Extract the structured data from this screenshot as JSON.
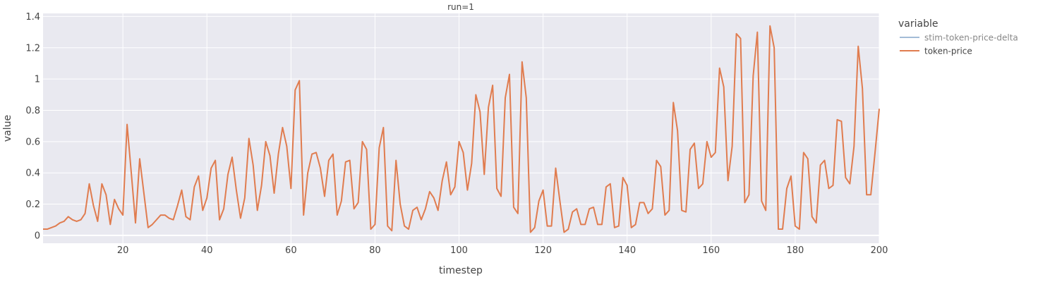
{
  "chart_data": {
    "type": "line",
    "title": "run=1",
    "xlabel": "timestep",
    "ylabel": "value",
    "xlim": [
      1,
      200
    ],
    "ylim": [
      -0.05,
      1.42
    ],
    "x_ticks": [
      20,
      40,
      60,
      80,
      100,
      120,
      140,
      160,
      180,
      200
    ],
    "y_ticks": [
      0,
      0.2,
      0.4,
      0.6,
      0.8,
      1,
      1.2,
      1.4
    ],
    "x_tick_labels": [
      "20",
      "40",
      "60",
      "80",
      "100",
      "120",
      "140",
      "160",
      "180",
      "200"
    ],
    "y_tick_labels": [
      "0",
      "0.2",
      "0.4",
      "0.6",
      "0.8",
      "1",
      "1.2",
      "1.4"
    ],
    "grid": true,
    "legend": {
      "title": "variable",
      "placement": "right",
      "entries": [
        "stim-token-price-delta",
        "token-price"
      ]
    },
    "series": [
      {
        "name": "stim-token-price-delta",
        "color": "#a3bcd7",
        "text_color": "#888888",
        "values": []
      },
      {
        "name": "token-price",
        "color": "#e07c4f",
        "text_color": "#444444",
        "x_start": 1,
        "values": [
          0.04,
          0.04,
          0.05,
          0.06,
          0.08,
          0.09,
          0.12,
          0.1,
          0.09,
          0.1,
          0.14,
          0.33,
          0.19,
          0.09,
          0.33,
          0.26,
          0.07,
          0.23,
          0.17,
          0.13,
          0.71,
          0.4,
          0.08,
          0.49,
          0.27,
          0.05,
          0.07,
          0.1,
          0.13,
          0.13,
          0.11,
          0.1,
          0.19,
          0.29,
          0.12,
          0.1,
          0.31,
          0.38,
          0.16,
          0.24,
          0.43,
          0.48,
          0.1,
          0.17,
          0.39,
          0.5,
          0.29,
          0.11,
          0.24,
          0.62,
          0.45,
          0.16,
          0.32,
          0.6,
          0.51,
          0.27,
          0.52,
          0.69,
          0.57,
          0.3,
          0.93,
          0.99,
          0.13,
          0.4,
          0.52,
          0.53,
          0.43,
          0.25,
          0.48,
          0.52,
          0.13,
          0.22,
          0.47,
          0.48,
          0.17,
          0.21,
          0.6,
          0.55,
          0.04,
          0.07,
          0.56,
          0.69,
          0.06,
          0.03,
          0.48,
          0.2,
          0.06,
          0.04,
          0.16,
          0.18,
          0.1,
          0.17,
          0.28,
          0.24,
          0.16,
          0.35,
          0.47,
          0.26,
          0.31,
          0.6,
          0.53,
          0.29,
          0.46,
          0.9,
          0.79,
          0.39,
          0.82,
          0.96,
          0.3,
          0.25,
          0.88,
          1.03,
          0.18,
          0.14,
          1.11,
          0.88,
          0.02,
          0.05,
          0.22,
          0.29,
          0.06,
          0.06,
          0.43,
          0.22,
          0.02,
          0.04,
          0.15,
          0.17,
          0.07,
          0.07,
          0.17,
          0.18,
          0.07,
          0.07,
          0.31,
          0.33,
          0.05,
          0.06,
          0.37,
          0.32,
          0.05,
          0.07,
          0.21,
          0.21,
          0.14,
          0.17,
          0.48,
          0.44,
          0.13,
          0.16,
          0.85,
          0.67,
          0.16,
          0.15,
          0.55,
          0.59,
          0.3,
          0.33,
          0.6,
          0.5,
          0.53,
          1.07,
          0.95,
          0.35,
          0.57,
          1.29,
          1.26,
          0.21,
          0.26,
          1.02,
          1.3,
          0.22,
          0.16,
          1.34,
          1.2,
          0.04,
          0.04,
          0.3,
          0.38,
          0.06,
          0.04,
          0.53,
          0.49,
          0.12,
          0.08,
          0.45,
          0.48,
          0.3,
          0.32,
          0.74,
          0.73,
          0.37,
          0.33,
          0.57,
          1.21,
          0.94,
          0.26,
          0.26,
          0.53,
          0.81
        ]
      }
    ]
  }
}
